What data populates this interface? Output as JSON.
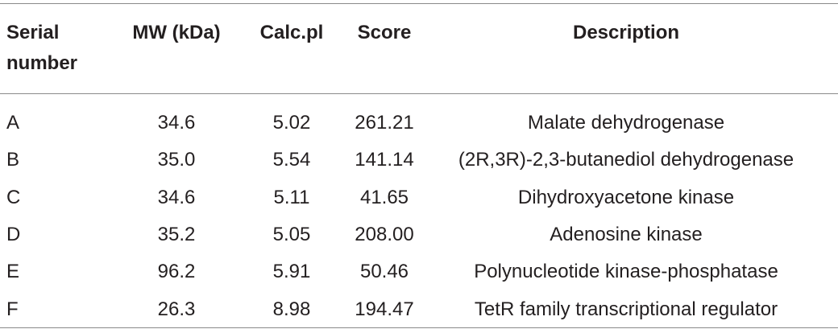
{
  "table": {
    "headers": [
      "Serial number",
      "MW (kDa)",
      "Calc.pl",
      "Score",
      "Description"
    ],
    "rows": [
      [
        "A",
        "34.6",
        "5.02",
        "261.21",
        "Malate dehydrogenase"
      ],
      [
        "B",
        "35.0",
        "5.54",
        "141.14",
        "(2R,3R)-2,3-butanediol dehydrogenase"
      ],
      [
        "C",
        "34.6",
        "5.11",
        "41.65",
        "Dihydroxyacetone kinase"
      ],
      [
        "D",
        "35.2",
        "5.05",
        "208.00",
        "Adenosine kinase"
      ],
      [
        "E",
        "96.2",
        "5.91",
        "50.46",
        "Polynucleotide kinase-phosphatase"
      ],
      [
        "F",
        "26.3",
        "8.98",
        "194.47",
        "TetR family transcriptional regulator"
      ]
    ]
  }
}
